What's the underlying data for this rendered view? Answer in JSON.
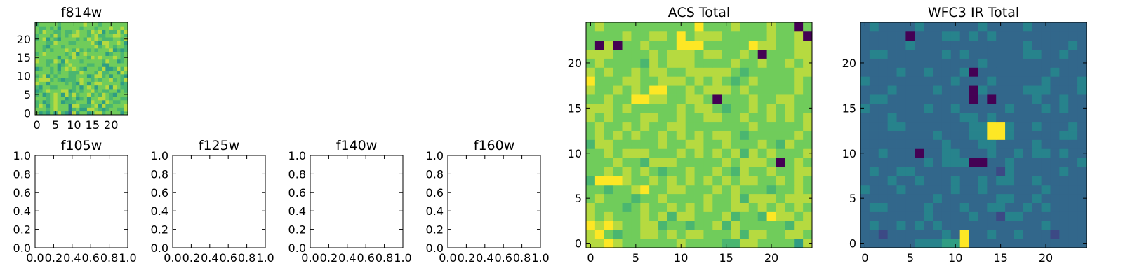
{
  "colormap": [
    "#440154",
    "#3b528b",
    "#21918c",
    "#5ec962",
    "#fde725"
  ],
  "chart_data": [
    {
      "id": "f814w",
      "type": "heatmap",
      "title": "f814w",
      "xlim": [
        -0.5,
        24.5
      ],
      "ylim": [
        -0.5,
        24.5
      ],
      "xticks": [
        0,
        5,
        10,
        15,
        20
      ],
      "xtick_labels": [
        "0",
        "5",
        "10",
        "15",
        "20"
      ],
      "yticks": [
        0,
        5,
        10,
        15,
        20
      ],
      "ytick_labels": [
        "0",
        "5",
        "10",
        "15",
        "20"
      ],
      "grid": false,
      "grid_size": 25,
      "value_range": [
        0.0,
        1.0
      ],
      "rows": [
        "7565758653857756886777757",
        "7776787774675588765677668",
        "6875787774886667858667778",
        "6756787566677758775876677",
        "7776787756756757788767766",
        "6756787586867786768765777",
        "5678777885676778676677576",
        "6577667777675787577858766",
        "8775777767658757887777756",
        "7888676566678776767786768",
        "6785767776677756886757765",
        "7777676776668777686677587",
        "5677675787876577768556868",
        "7776775678777766775577777",
        "8776687587776777776877567",
        "7777775776877768787778767",
        "6787777767857877777567767",
        "7767677787686767677785656",
        "7765777677777777867876776",
        "7776687776677778658877875",
        "6785765777767687876667768",
        "6777686767887767866778876",
        "7687766766787768785766868",
        "7667675777776777677787787",
        "6777776777777877767777777"
      ]
    },
    {
      "id": "f105w",
      "type": "heatmap",
      "title": "f105w",
      "xlim": [
        0.0,
        1.0
      ],
      "ylim": [
        0.0,
        1.0
      ],
      "xticks": [
        0.0,
        0.2,
        0.4,
        0.6,
        0.8,
        1.0
      ],
      "xtick_labels": [
        "0.0",
        "0.2",
        "0.4",
        "0.6",
        "0.8",
        "1.0"
      ],
      "yticks": [
        0.0,
        0.2,
        0.4,
        0.6,
        0.8,
        1.0
      ],
      "ytick_labels": [
        "0.0",
        "0.2",
        "0.4",
        "0.6",
        "0.8",
        "1.0"
      ],
      "grid": false,
      "rows": []
    },
    {
      "id": "f125w",
      "type": "heatmap",
      "title": "f125w",
      "xlim": [
        0.0,
        1.0
      ],
      "ylim": [
        0.0,
        1.0
      ],
      "xticks": [
        0.0,
        0.2,
        0.4,
        0.6,
        0.8,
        1.0
      ],
      "xtick_labels": [
        "0.0",
        "0.2",
        "0.4",
        "0.6",
        "0.8",
        "1.0"
      ],
      "yticks": [
        0.0,
        0.2,
        0.4,
        0.6,
        0.8,
        1.0
      ],
      "ytick_labels": [
        "0.0",
        "0.2",
        "0.4",
        "0.6",
        "0.8",
        "1.0"
      ],
      "grid": false,
      "rows": []
    },
    {
      "id": "f140w",
      "type": "heatmap",
      "title": "f140w",
      "xlim": [
        0.0,
        1.0
      ],
      "ylim": [
        0.0,
        1.0
      ],
      "xticks": [
        0.0,
        0.2,
        0.4,
        0.6,
        0.8,
        1.0
      ],
      "xtick_labels": [
        "0.0",
        "0.2",
        "0.4",
        "0.6",
        "0.8",
        "1.0"
      ],
      "yticks": [
        0.0,
        0.2,
        0.4,
        0.6,
        0.8,
        1.0
      ],
      "ytick_labels": [
        "0.0",
        "0.2",
        "0.4",
        "0.6",
        "0.8",
        "1.0"
      ],
      "grid": false,
      "rows": []
    },
    {
      "id": "f160w",
      "type": "heatmap",
      "title": "f160w",
      "xlim": [
        0.0,
        1.0
      ],
      "ylim": [
        0.0,
        1.0
      ],
      "xticks": [
        0.0,
        0.2,
        0.4,
        0.6,
        0.8,
        1.0
      ],
      "xtick_labels": [
        "0.0",
        "0.2",
        "0.4",
        "0.6",
        "0.8",
        "1.0"
      ],
      "yticks": [
        0.0,
        0.2,
        0.4,
        0.6,
        0.8,
        1.0
      ],
      "ytick_labels": [
        "0.0",
        "0.2",
        "0.4",
        "0.6",
        "0.8",
        "1.0"
      ],
      "grid": false,
      "rows": []
    },
    {
      "id": "acs-total",
      "type": "heatmap",
      "title": "ACS Total",
      "xlim": [
        -0.5,
        24.5
      ],
      "ylim": [
        -0.5,
        24.5
      ],
      "xticks": [
        0,
        5,
        10,
        15,
        20
      ],
      "xtick_labels": [
        "0",
        "5",
        "10",
        "15",
        "20"
      ],
      "yticks": [
        0,
        5,
        10,
        15,
        20
      ],
      "ytick_labels": [
        "0",
        "5",
        "10",
        "15",
        "20"
      ],
      "grid": false,
      "grid_size": 25,
      "value_range": [
        0.0,
        1.0
      ],
      "rows": [
        "8898777777877776688777758",
        "8976778878788777868877887",
        "9898778867767786877777688",
        "8787778786887778677698878",
        "8777678778787877887878787",
        "7877767787777877868887888",
        "7767789778877787877767787",
        "6999877878787878788778787",
        "7787878767787787687787788",
        "7778776888777778788870787",
        "7787888777878787868787778",
        "6887777787788778777876877",
        "7878787787878788767777787",
        "7877878778877777778777778",
        "8787778877877887787787878",
        "8887877777878876778787877",
        "7787799887788707778778877",
        "8778787997787888787777787",
        "9777887788878787678777787",
        "8787787887788888767777788",
        "7877776878887777877877878",
        "8887777878887887787077788",
        "7080778777999777779887788",
        "7777877887978887777787780",
        "7877777777779777877787707"
      ]
    },
    {
      "id": "wfc3-ir-total",
      "type": "heatmap",
      "title": "WFC3 IR Total",
      "xlim": [
        -0.5,
        24.5
      ],
      "ylim": [
        -0.5,
        24.5
      ],
      "xticks": [
        0,
        5,
        10,
        15,
        20
      ],
      "xtick_labels": [
        "0",
        "5",
        "10",
        "15",
        "20"
      ],
      "yticks": [
        0,
        5,
        10,
        15,
        20
      ],
      "ytick_labels": [
        "0",
        "5",
        "10",
        "15",
        "20"
      ],
      "grid": false,
      "grid_size": 25,
      "value_range": [
        0.0,
        1.0
      ],
      "rows": [
        "3333334445593333333333333",
        "3323333334393343343332333",
        "3433434343333333333343333",
        "3333333433334332443333333",
        "3443333433343344334343333",
        "3333333343333334433433333",
        "4333433333433433333343333",
        "3334334333433434433433333",
        "3433443333333332433333433",
        "3333333434440033433333334",
        "3343330334433343343443433",
        "3333333334333443333433333",
        "3333333343334499433333443",
        "3334433333334499433433343",
        "3334333333344343333333333",
        "4333333433433333433343433",
        "3443333333330303333433433",
        "3334333343330433334443334",
        "4333333333433343333343334",
        "3333433433340333333334333",
        "3333333333333433333333333",
        "3443333334343333334433433",
        "3333343333333333334333343",
        "3333303334434343333333333",
        "3433334333333433334333333"
      ]
    }
  ]
}
